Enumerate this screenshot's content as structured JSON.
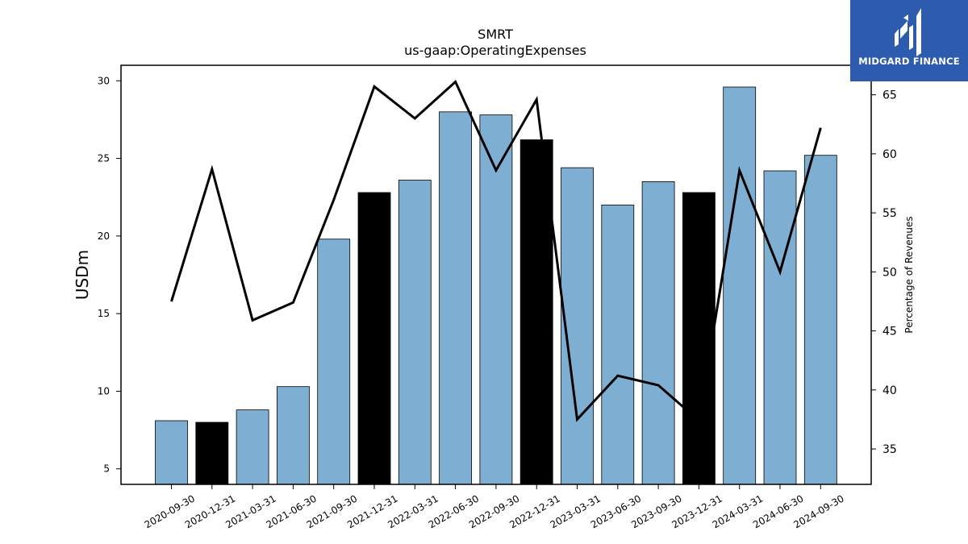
{
  "logo": {
    "text": "MIDGARD FINANCE",
    "bg_color": "#2d5caf"
  },
  "chart_data": {
    "type": "bar",
    "title": "SMRT",
    "subtitle": "us-gaap:OperatingExpenses",
    "ylabel": "USDm",
    "ylabel_right": "Percentage of Revenues",
    "categories": [
      "2020-09-30",
      "2020-12-31",
      "2021-03-31",
      "2021-06-30",
      "2021-09-30",
      "2021-12-31",
      "2022-03-31",
      "2022-06-30",
      "2022-09-30",
      "2022-12-31",
      "2023-03-31",
      "2023-06-30",
      "2023-09-30",
      "2023-12-31",
      "2024-03-31",
      "2024-06-30",
      "2024-09-30"
    ],
    "series": [
      {
        "type": "bar",
        "values": [
          8.1,
          8.0,
          8.8,
          10.3,
          19.8,
          22.8,
          23.6,
          28.0,
          27.8,
          26.2,
          24.4,
          22.0,
          23.5,
          22.8,
          29.6,
          24.2,
          25.2
        ]
      },
      {
        "type": "line",
        "axis": "right",
        "values": [
          47.5,
          58.7,
          45.9,
          47.4,
          56.1,
          65.7,
          63.0,
          66.1,
          58.6,
          64.6,
          37.5,
          41.2,
          40.4,
          37.4,
          58.6,
          50.0,
          62.2
        ]
      }
    ],
    "bar_colors": [
      "#7eafd3",
      "#000000",
      "#7eafd3",
      "#7eafd3",
      "#7eafd3",
      "#000000",
      "#7eafd3",
      "#7eafd3",
      "#7eafd3",
      "#000000",
      "#7eafd3",
      "#7eafd3",
      "#7eafd3",
      "#000000",
      "#7eafd3",
      "#7eafd3",
      "#7eafd3"
    ],
    "line_color": "#000000",
    "ylim": [
      4,
      31
    ],
    "yticks": [
      5,
      10,
      15,
      20,
      25,
      30
    ],
    "ylim_right": [
      32,
      67.5
    ],
    "yticks_right": [
      35,
      40,
      45,
      50,
      55,
      60,
      65
    ],
    "grid": false
  }
}
